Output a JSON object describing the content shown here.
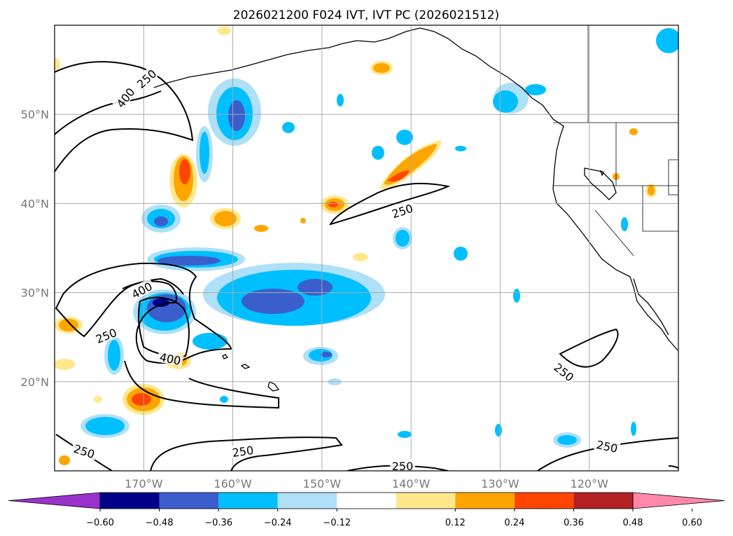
{
  "chart_data": {
    "type": "map",
    "title": "2026021200 F024 IVT, IVT PC (2026021512)",
    "lat_ticks": [
      "50°N",
      "40°N",
      "30°N",
      "20°N"
    ],
    "lon_ticks": [
      "170°W",
      "160°W",
      "150°W",
      "140°W",
      "130°W",
      "120°W"
    ],
    "lat_values": [
      50,
      40,
      30,
      20
    ],
    "lon_values": [
      -170,
      -160,
      -150,
      -140,
      -130,
      -120
    ],
    "lon_range": [
      -180,
      -110
    ],
    "lat_range": [
      10,
      60
    ],
    "grid": true,
    "colorbar": {
      "orientation": "horizontal",
      "extend": "both",
      "tick_values": [
        -0.6,
        -0.48,
        -0.36,
        -0.24,
        -0.12,
        0.12,
        0.24,
        0.36,
        0.48,
        0.6
      ],
      "tick_labels": [
        "−0.60",
        "−0.48",
        "−0.36",
        "−0.24",
        "−0.12",
        "0.12",
        "0.24",
        "0.36",
        "0.48",
        "0.60"
      ],
      "colors": [
        "#9932cc",
        "#00008b",
        "#3a5fcd",
        "#00bfff",
        "#aee0f7",
        "#ffffff",
        "#ffe88c",
        "#ffa500",
        "#ff4500",
        "#b22222",
        "#ff88aa"
      ]
    },
    "contour_levels": [
      250,
      400
    ],
    "contour_labels": [
      "250",
      "250",
      "250",
      "250",
      "250",
      "250",
      "250",
      "400",
      "400",
      "400"
    ]
  }
}
